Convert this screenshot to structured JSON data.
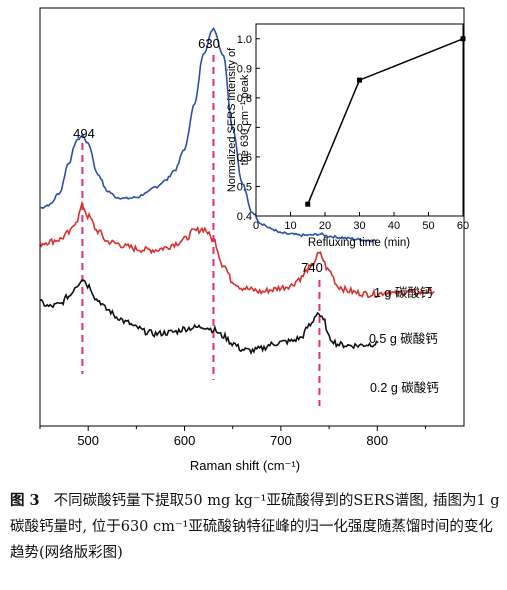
{
  "chart_data": [
    {
      "type": "line",
      "title": "",
      "xlabel": "Raman shift (cm⁻¹)",
      "ylabel": "",
      "xlim": [
        450,
        890
      ],
      "xticks": [
        500,
        600,
        700,
        800
      ],
      "grid": false,
      "series": [
        {
          "name": "1 g 碳酸钙",
          "color": "#2d4fa8",
          "x": [
            450,
            460,
            470,
            480,
            488,
            494,
            500,
            510,
            520,
            530,
            540,
            550,
            560,
            570,
            580,
            590,
            600,
            610,
            620,
            630,
            640,
            650,
            660,
            670,
            680,
            690,
            700,
            710,
            720,
            730,
            740,
            750,
            760,
            770,
            780,
            790,
            800
          ],
          "y": [
            0.02,
            0.05,
            0.16,
            0.45,
            0.66,
            0.71,
            0.63,
            0.34,
            0.18,
            0.12,
            0.11,
            0.12,
            0.16,
            0.22,
            0.28,
            0.38,
            0.58,
            1.0,
            1.5,
            1.73,
            1.48,
            0.78,
            0.25,
            -0.02,
            -0.13,
            -0.18,
            -0.22,
            -0.23,
            -0.24,
            -0.24,
            -0.23,
            -0.25,
            -0.26,
            -0.27,
            -0.28,
            -0.29,
            -0.29
          ]
        },
        {
          "name": "0.5 g 碳酸钙",
          "color": "#d8302e",
          "x": [
            450,
            460,
            470,
            480,
            488,
            494,
            500,
            510,
            520,
            530,
            540,
            550,
            560,
            570,
            580,
            590,
            600,
            610,
            620,
            630,
            640,
            650,
            660,
            670,
            680,
            690,
            700,
            710,
            720,
            730,
            740,
            750,
            760,
            770,
            780,
            790,
            800,
            810,
            820,
            830,
            840,
            850,
            860
          ],
          "y": [
            -0.32,
            -0.3,
            -0.28,
            -0.22,
            -0.1,
            0.04,
            -0.06,
            -0.2,
            -0.3,
            -0.32,
            -0.35,
            -0.37,
            -0.38,
            -0.38,
            -0.36,
            -0.32,
            -0.28,
            -0.2,
            -0.18,
            -0.28,
            -0.52,
            -0.68,
            -0.74,
            -0.76,
            -0.78,
            -0.76,
            -0.74,
            -0.72,
            -0.65,
            -0.55,
            -0.42,
            -0.58,
            -0.73,
            -0.77,
            -0.79,
            -0.8,
            -0.8,
            -0.78,
            -0.8,
            -0.78,
            -0.79,
            -0.78,
            -0.77
          ]
        },
        {
          "name": "0.2 g 碳酸钙",
          "color": "#111111",
          "x": [
            450,
            460,
            470,
            480,
            488,
            494,
            500,
            510,
            520,
            530,
            540,
            550,
            560,
            570,
            580,
            590,
            600,
            610,
            620,
            630,
            640,
            650,
            660,
            670,
            680,
            690,
            700,
            710,
            720,
            730,
            738,
            745,
            750,
            760,
            770,
            780,
            790,
            800
          ],
          "y": [
            -0.88,
            -0.92,
            -0.9,
            -0.82,
            -0.72,
            -0.65,
            -0.72,
            -0.86,
            -0.95,
            -1.02,
            -1.07,
            -1.12,
            -1.16,
            -1.18,
            -1.17,
            -1.16,
            -1.13,
            -1.12,
            -1.11,
            -1.14,
            -1.2,
            -1.27,
            -1.33,
            -1.34,
            -1.32,
            -1.28,
            -1.26,
            -1.25,
            -1.22,
            -1.1,
            -0.98,
            -1.06,
            -1.22,
            -1.28,
            -1.29,
            -1.29,
            -1.28,
            -1.27
          ]
        }
      ],
      "peak_markers": [
        {
          "x": 494,
          "label": "494"
        },
        {
          "x": 630,
          "label": "630"
        },
        {
          "x": 740,
          "label": "740"
        }
      ],
      "marker_color": "#e0307a",
      "legend_placement": "right, inline next to each trace"
    },
    {
      "type": "line",
      "title": "",
      "xlabel": "Refluxing time (min)",
      "ylabel": "Normalized SERS intensity of the 630 cm⁻¹ peak",
      "xlim": [
        0,
        60
      ],
      "ylim": [
        0.4,
        1.05
      ],
      "xticks": [
        0,
        10,
        20,
        30,
        40,
        50,
        60
      ],
      "yticks": [
        0.4,
        0.5,
        0.6,
        0.7,
        0.8,
        0.9,
        1.0
      ],
      "tick_labels_x": [
        "0",
        "10",
        "20",
        "30",
        "40",
        "50",
        "60"
      ],
      "tick_labels_y": [
        "0.4",
        "0.5",
        "0.6",
        "0.7",
        "0.8",
        "0.9",
        "1.0"
      ],
      "grid": false,
      "series": [
        {
          "name": "",
          "color": "#000000",
          "x": [
            15,
            30,
            60
          ],
          "y": [
            0.44,
            0.86,
            1.0
          ]
        }
      ]
    }
  ],
  "labels": {
    "main_tick_labels": [
      "500",
      "600",
      "700",
      "800"
    ],
    "main_xlabel": "Raman shift (cm⁻¹)",
    "peak_labels": [
      "494",
      "630",
      "740"
    ],
    "legend": [
      "1 g 碳酸钙",
      "0.5 g 碳酸钙",
      "0.2 g 碳酸钙"
    ],
    "inset_ylabel_line1": "Normalized SERS intensity of",
    "inset_ylabel_line2": "the 630 cm⁻¹ peak",
    "inset_xlabel": "Refluxing time (min)"
  },
  "caption": {
    "label": "图 3",
    "text": "不同碳酸钙量下提取50 mg kg⁻¹亚硫酸得到的SERS谱图, 插图为1 g碳酸钙量时, 位于630 cm⁻¹亚硫酸钠特征峰的归一化强度随蒸馏时间的变化趋势(网络版彩图)"
  }
}
